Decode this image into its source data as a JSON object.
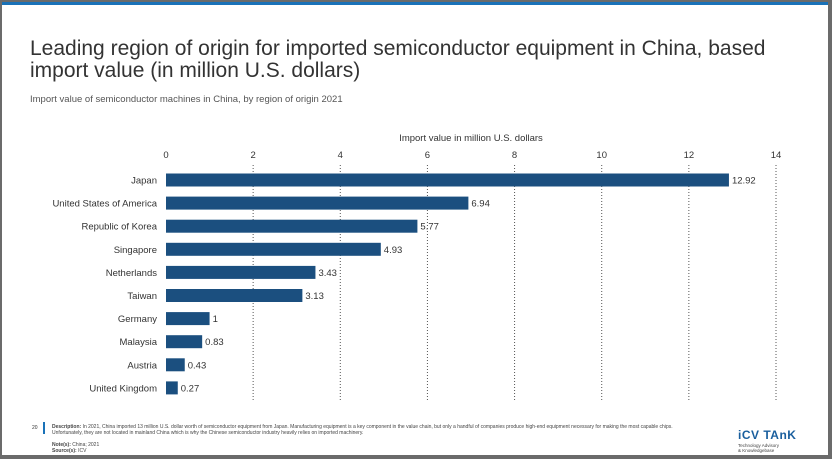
{
  "title": "Leading region of origin for imported semiconductor equipment in China, based import value (in million U.S. dollars)",
  "subtitle": "Import value of semiconductor machines in China, by region of origin 2021",
  "chart_data": {
    "type": "bar",
    "orientation": "horizontal",
    "xlabel": "Import value in million U.S. dollars",
    "xlim": [
      0,
      14
    ],
    "xticks": [
      0,
      2,
      4,
      6,
      8,
      10,
      12,
      14
    ],
    "grid": true,
    "categories": [
      "Japan",
      "United States of America",
      "Republic of Korea",
      "Singapore",
      "Netherlands",
      "Taiwan",
      "Germany",
      "Malaysia",
      "Austria",
      "United Kingdom"
    ],
    "values": [
      12.92,
      6.94,
      5.77,
      4.93,
      3.43,
      3.13,
      1,
      0.83,
      0.43,
      0.27
    ],
    "value_labels": [
      "12.92",
      "6.94",
      "5.77",
      "4.93",
      "3.43",
      "3.13",
      "1",
      "0.83",
      "0.43",
      "0.27"
    ],
    "bar_color": "#1b4f7f"
  },
  "footer": {
    "page_number": "20",
    "description_label": "Description:",
    "description": "In 2021, China imported 13 million U.S. dollar worth of semiconductor equipment from Japan. Manufacturing equipment is a key component in the value chain, but only a handful of companies produce high-end equipment necessary for making the most capable chips. Unfortunately, they are not located in mainland China which is why the Chinese semiconductor industry heavily relies on imported machinery.",
    "note_label": "Note(s):",
    "note": "China; 2021",
    "source_label": "Source(s):",
    "source": "ICV"
  },
  "logo": {
    "name": "iCV TAnK",
    "tagline1": "Technology Advisory",
    "tagline2": "& Knowledgebase"
  },
  "colors": {
    "accent": "#1a72b8",
    "bar": "#1b4f7f"
  }
}
